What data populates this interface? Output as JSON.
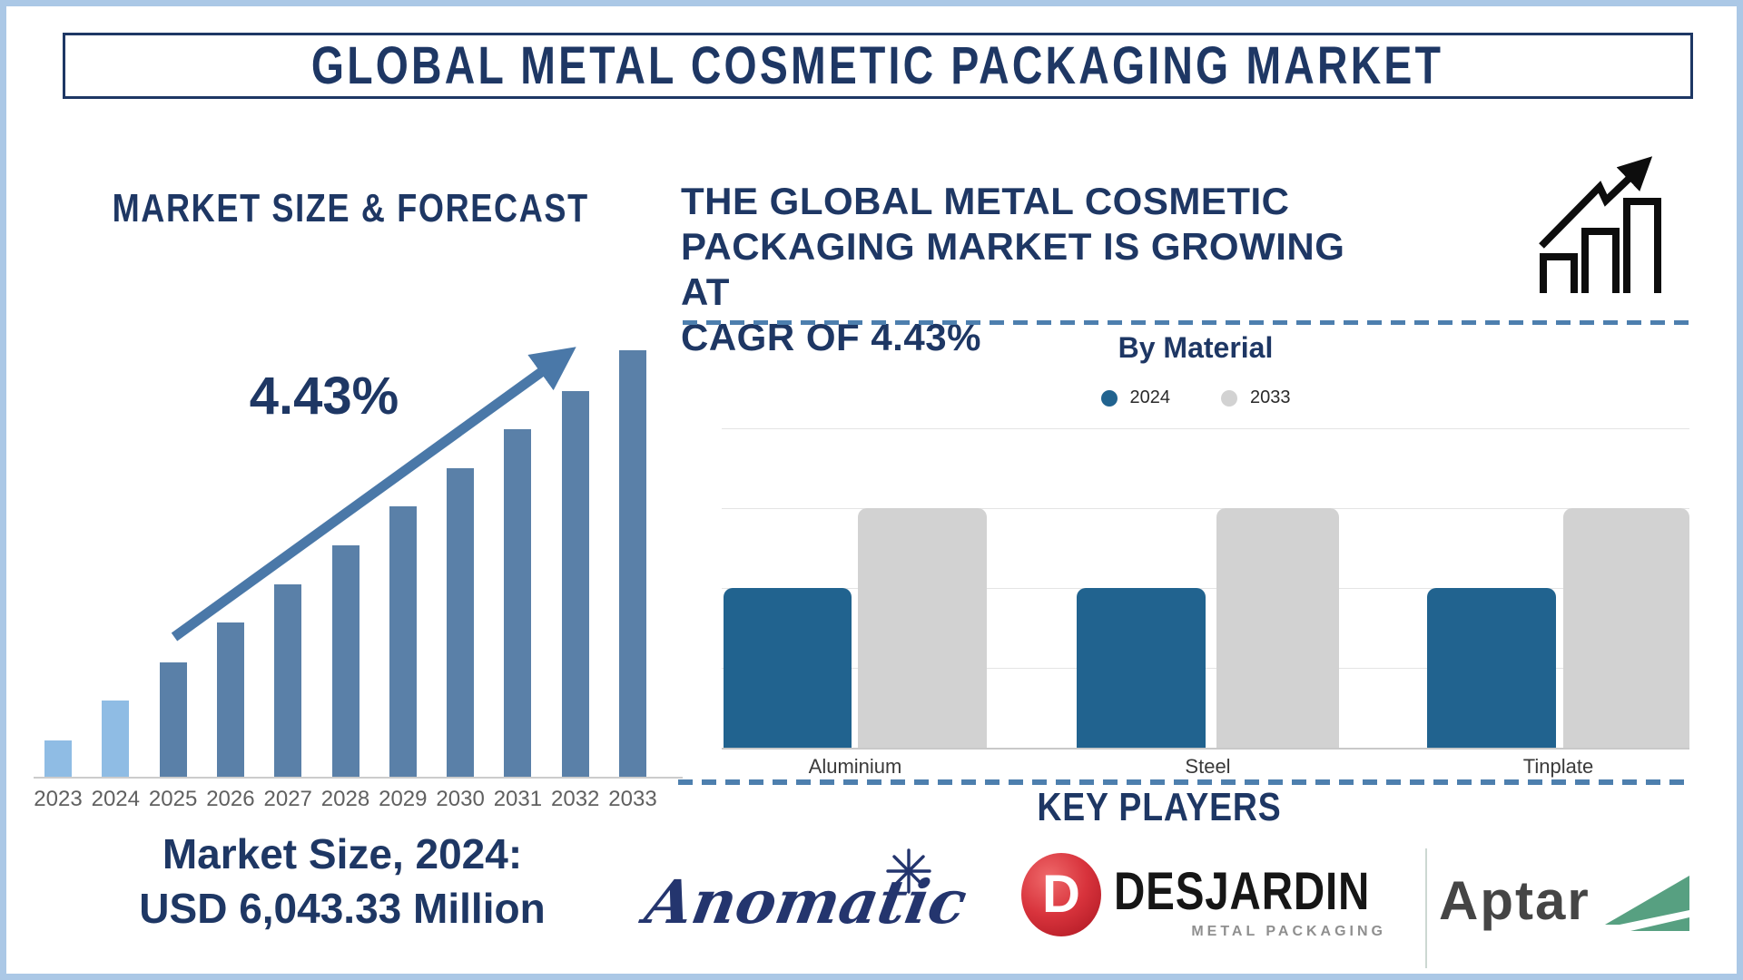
{
  "frame": {
    "border_color": "#abc8e6",
    "accent_navy": "#1e3764",
    "dash_color": "#4d7fae"
  },
  "title": {
    "text": "GLOBAL METAL COSMETIC PACKAGING MARKET"
  },
  "left_panel": {
    "heading": "MARKET SIZE & FORECAST",
    "cagr_annotation": "4.43%",
    "market_size_line1": "Market Size, 2024:",
    "market_size_line2": "USD 6,043.33 Million"
  },
  "right_panel": {
    "growth_statement_lines": {
      "0": "THE GLOBAL METAL COSMETIC",
      "1": "PACKAGING MARKET IS GROWING AT",
      "2": "CAGR OF 4.43%"
    },
    "by_material_title": "By Material",
    "key_players_heading": "KEY PLAYERS"
  },
  "key_players": {
    "anomatic": {
      "name": "Anomatic",
      "logo_text": "Anomatic",
      "logo_color": "#24356e"
    },
    "desjardin": {
      "name": "Desjardin",
      "monogram": "D",
      "logo_text": "DESJARDIN",
      "logo_subtext": "METAL PACKAGING",
      "globe_color": "#d8333c"
    },
    "aptar": {
      "name": "Aptar",
      "logo_text": "Aptar",
      "mark_color": "#57a081"
    }
  },
  "chart_data": [
    {
      "type": "bar",
      "title": "MARKET SIZE & FORECAST",
      "categories": [
        "2023",
        "2024",
        "2025",
        "2026",
        "2027",
        "2028",
        "2029",
        "2030",
        "2031",
        "2032",
        "2033"
      ],
      "values_relative": [
        40,
        84,
        126,
        170,
        212,
        255,
        298,
        340,
        383,
        425,
        470
      ],
      "value_axis": "none (illustrative heights, px)",
      "annotation": "4.43% CAGR trend arrow",
      "bar_colors": [
        "#8fbce4",
        "#8fbce4",
        "#5a80a8",
        "#5a80a8",
        "#5a80a8",
        "#5a80a8",
        "#5a80a8",
        "#5a80a8",
        "#5a80a8",
        "#5a80a8",
        "#5a80a8"
      ],
      "known_values": {
        "2024": "USD 6,043.33 Million"
      }
    },
    {
      "type": "bar",
      "title": "By Material",
      "categories": [
        "Aluminium",
        "Steel",
        "Tinplate"
      ],
      "series": [
        {
          "name": "2024",
          "color": "#21638f",
          "values": [
            2,
            2,
            2
          ]
        },
        {
          "name": "2033",
          "color": "#d2d2d2",
          "values": [
            3,
            3,
            3
          ]
        }
      ],
      "ylim": [
        0,
        4
      ],
      "grid": true,
      "legend_position": "top",
      "note": "no numeric axis labels; values estimated in gridline units"
    }
  ]
}
